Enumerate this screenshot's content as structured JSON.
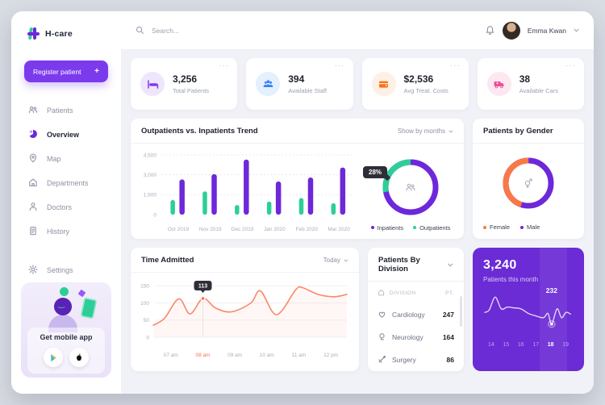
{
  "sidebar": {
    "logo_text": "H-care",
    "register_button": {
      "label": "Register patient",
      "plus": "+"
    },
    "nav": [
      {
        "label": "Patients",
        "icon": "patients-icon",
        "active": false
      },
      {
        "label": "Overview",
        "icon": "overview-icon",
        "active": true
      },
      {
        "label": "Map",
        "icon": "map-pin-icon",
        "active": false
      },
      {
        "label": "Departments",
        "icon": "departments-icon",
        "active": false
      },
      {
        "label": "Doctors",
        "icon": "doctors-icon",
        "active": false
      },
      {
        "label": "History",
        "icon": "history-icon",
        "active": false
      }
    ],
    "settings": {
      "label": "Settings",
      "icon": "settings-icon"
    },
    "mobile_app": {
      "label": "Get mobile app",
      "stores": [
        "google-play-icon",
        "apple-icon"
      ]
    }
  },
  "topbar": {
    "search_placeholder": "Search...",
    "user_name": "Emma Kwan",
    "icons": [
      "search-icon",
      "bell-icon",
      "avatar",
      "chevron-down-icon"
    ]
  },
  "stats": [
    {
      "value": "3,256",
      "label": "Total Patients",
      "icon": "bed-icon",
      "icon_color": "#7C3AED",
      "icon_bg": "#EFE6FD",
      "menu": "···"
    },
    {
      "value": "394",
      "label": "Available Staff",
      "icon": "staff-icon",
      "icon_color": "#3B82F6",
      "icon_bg": "#E3F0FD",
      "menu": "···"
    },
    {
      "value": "$2,536",
      "label": "Avg Treat. Costs",
      "icon": "wallet-icon",
      "icon_color": "#F97316",
      "icon_bg": "#FEF0E4",
      "menu": "···"
    },
    {
      "value": "38",
      "label": "Available Cars",
      "icon": "ambulance-icon",
      "icon_color": "#EC4899",
      "icon_bg": "#FDE7F0",
      "menu": "···"
    }
  ],
  "trend_card": {
    "title": "Outpatients vs. Inpatients Trend",
    "filter_label": "Show by months"
  },
  "gender_card": {
    "title": "Patients by Gender"
  },
  "time_card": {
    "title": "Time Admitted",
    "filter_label": "Today"
  },
  "division_card": {
    "title": "Patients By Division",
    "columns": [
      "DIVISION",
      "PT."
    ],
    "header_icon": "building-icon",
    "rows": [
      {
        "icon": "cardiology-icon",
        "name": "Cardiology",
        "pt": "247"
      },
      {
        "icon": "neurology-icon",
        "name": "Neurology",
        "pt": "164"
      },
      {
        "icon": "surgery-icon",
        "name": "Surgery",
        "pt": "86"
      }
    ]
  },
  "month_card": {
    "value": "3,240",
    "label": "Patients this month"
  },
  "colors": {
    "accent": "#7C3AED",
    "purple_bar": "#6D28D9",
    "green": "#2DCE98",
    "orange": "#F97350",
    "gender_orange": "#F97845",
    "dark_tooltip": "#2e2e38"
  },
  "chart_data": [
    {
      "id": "trend_bars",
      "type": "bar",
      "title": "Outpatients vs. Inpatients Trend",
      "categories": [
        "Oct 2019",
        "Nov 2019",
        "Dec 2019",
        "Jan 2020",
        "Feb 2020",
        "Mar 2020"
      ],
      "series": [
        {
          "name": "Inpatients",
          "color": "#6D28D9",
          "values": [
            2650,
            3050,
            4150,
            2500,
            2800,
            3550
          ]
        },
        {
          "name": "Outpatients",
          "color": "#2DCE98",
          "values": [
            1100,
            1750,
            720,
            980,
            1250,
            860
          ]
        }
      ],
      "ylim": [
        0,
        4500
      ],
      "yticks": [
        0,
        1500,
        3000,
        4500
      ],
      "grid": "dotted"
    },
    {
      "id": "trend_donut",
      "type": "pie",
      "slices": [
        {
          "name": "Outpatients",
          "pct": 28,
          "color": "#2DCE98"
        },
        {
          "name": "Inpatients",
          "pct": 72,
          "color": "#6D28D9"
        }
      ],
      "callout": "28%",
      "center_icon": "patients-icon",
      "legend": [
        {
          "label": "Inpatients",
          "color": "#6D28D9"
        },
        {
          "label": "Outpatients",
          "color": "#2DCE98"
        }
      ],
      "legend_position": "bottom"
    },
    {
      "id": "gender_donut",
      "type": "pie",
      "slices": [
        {
          "name": "Female",
          "pct": 45,
          "color": "#F97845"
        },
        {
          "name": "Male",
          "pct": 55,
          "color": "#6D28D9"
        }
      ],
      "center_icon": "gender-icon",
      "legend": [
        {
          "label": "Female",
          "color": "#F97845"
        },
        {
          "label": "Male",
          "color": "#6D28D9"
        }
      ],
      "legend_position": "bottom"
    },
    {
      "id": "time_line",
      "type": "line",
      "title": "Time Admitted",
      "x_labels": [
        "07 am",
        "08 am",
        "09 am",
        "10 am",
        "11 am",
        "12 pm"
      ],
      "highlight_label": "08 am",
      "yticks": [
        0,
        50,
        100,
        150
      ],
      "ylim": [
        0,
        160
      ],
      "color": "#F97350",
      "tooltip": {
        "x": 8,
        "value": 113
      },
      "points": [
        [
          6.45,
          35
        ],
        [
          6.8,
          55
        ],
        [
          7.25,
          112
        ],
        [
          7.6,
          68
        ],
        [
          8,
          113
        ],
        [
          8.4,
          85
        ],
        [
          8.9,
          74
        ],
        [
          9.5,
          100
        ],
        [
          9.8,
          135
        ],
        [
          10.3,
          66
        ],
        [
          10.9,
          138
        ],
        [
          11.1,
          145
        ],
        [
          11.6,
          125
        ],
        [
          12.1,
          118
        ],
        [
          12.5,
          125
        ]
      ]
    },
    {
      "id": "month_spark",
      "type": "line",
      "x_labels": [
        "14",
        "15",
        "16",
        "17",
        "18",
        "19"
      ],
      "highlight_label": "18",
      "tooltip": {
        "x": 18.05,
        "value": 232
      },
      "color": "#FFFFFF",
      "points": [
        [
          13.6,
          45
        ],
        [
          13.9,
          52
        ],
        [
          14.3,
          88
        ],
        [
          14.7,
          55
        ],
        [
          15.1,
          60
        ],
        [
          15.5,
          58
        ],
        [
          16,
          55
        ],
        [
          16.5,
          42
        ],
        [
          17,
          35
        ],
        [
          17.5,
          30
        ],
        [
          17.8,
          42
        ],
        [
          18.05,
          12
        ],
        [
          18.4,
          55
        ],
        [
          18.7,
          30
        ],
        [
          19,
          45
        ],
        [
          19.3,
          40
        ]
      ]
    }
  ]
}
